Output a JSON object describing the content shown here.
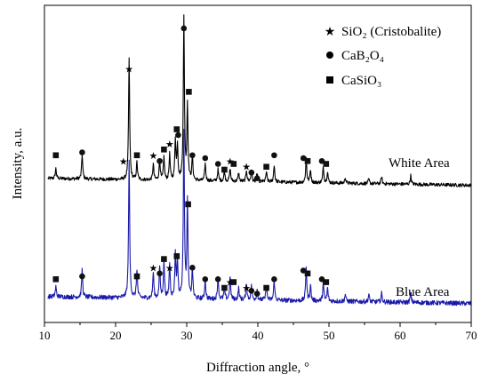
{
  "chart_data": {
    "type": "line",
    "xlabel": "Diffraction angle, °",
    "ylabel": "Intensity, a.u.",
    "xlim": [
      10,
      70
    ],
    "xticks": [
      10,
      20,
      30,
      40,
      50,
      60,
      70
    ],
    "grid": false,
    "legend": {
      "placement": "top-right",
      "entries": [
        {
          "marker": "star",
          "label": "SiO₂ (Cristobalite)"
        },
        {
          "marker": "circle",
          "label": "CaB₂O₄"
        },
        {
          "marker": "square",
          "label": "CaSiO₃"
        }
      ]
    },
    "series": [
      {
        "name": "White Area",
        "color": "#000000",
        "offset": 4,
        "baseline": 1.0,
        "slope": -0.004,
        "noise": 0.06,
        "peaks": [
          [
            11.6,
            0.35
          ],
          [
            15.3,
            0.85
          ],
          [
            21.9,
            4.2
          ],
          [
            23.0,
            0.6
          ],
          [
            25.3,
            0.55
          ],
          [
            26.2,
            0.7
          ],
          [
            26.8,
            0.8
          ],
          [
            27.6,
            0.9
          ],
          [
            28.4,
            1.4
          ],
          [
            28.7,
            1.2
          ],
          [
            29.6,
            5.6
          ],
          [
            30.1,
            2.6
          ],
          [
            30.8,
            0.8
          ],
          [
            32.6,
            0.6
          ],
          [
            34.4,
            0.4
          ],
          [
            35.3,
            0.35
          ],
          [
            36.1,
            0.45
          ],
          [
            37.3,
            0.3
          ],
          [
            38.4,
            0.4
          ],
          [
            39.1,
            0.35
          ],
          [
            39.9,
            0.3
          ],
          [
            41.2,
            0.35
          ],
          [
            42.3,
            0.6
          ],
          [
            46.8,
            0.85
          ],
          [
            47.4,
            0.45
          ],
          [
            49.2,
            0.55
          ],
          [
            49.8,
            0.4
          ],
          [
            52.3,
            0.2
          ],
          [
            55.6,
            0.15
          ],
          [
            57.4,
            0.25
          ],
          [
            61.5,
            0.3
          ]
        ],
        "markers": [
          {
            "x": 11.6,
            "y": 5.8,
            "type": "square"
          },
          {
            "x": 15.3,
            "y": 5.9,
            "type": "circle"
          },
          {
            "x": 21.9,
            "y": 8.8,
            "type": "star"
          },
          {
            "x": 23.0,
            "y": 5.8,
            "type": "square"
          },
          {
            "x": 25.3,
            "y": 5.8,
            "type": "star"
          },
          {
            "x": 26.2,
            "y": 5.6,
            "type": "circle"
          },
          {
            "x": 26.8,
            "y": 6.0,
            "type": "square"
          },
          {
            "x": 27.6,
            "y": 6.2,
            "type": "star"
          },
          {
            "x": 28.6,
            "y": 6.7,
            "type": "square"
          },
          {
            "x": 29.6,
            "y": 10.2,
            "type": "circle"
          },
          {
            "x": 30.3,
            "y": 8.0,
            "type": "square"
          },
          {
            "x": 30.8,
            "y": 5.8,
            "type": "circle"
          },
          {
            "x": 32.6,
            "y": 5.7,
            "type": "circle"
          },
          {
            "x": 34.4,
            "y": 5.5,
            "type": "circle"
          },
          {
            "x": 35.3,
            "y": 5.3,
            "type": "square"
          },
          {
            "x": 36.1,
            "y": 5.6,
            "type": "star"
          },
          {
            "x": 36.6,
            "y": 5.5,
            "type": "square"
          },
          {
            "x": 38.4,
            "y": 5.4,
            "type": "star"
          },
          {
            "x": 39.1,
            "y": 5.2,
            "type": "circle"
          },
          {
            "x": 39.9,
            "y": 5.0,
            "type": "circle"
          },
          {
            "x": 41.2,
            "y": 5.4,
            "type": "square"
          },
          {
            "x": 42.3,
            "y": 5.8,
            "type": "circle"
          },
          {
            "x": 46.4,
            "y": 5.7,
            "type": "circle"
          },
          {
            "x": 47.0,
            "y": 5.6,
            "type": "square"
          },
          {
            "x": 49.0,
            "y": 5.6,
            "type": "circle"
          },
          {
            "x": 49.6,
            "y": 5.5,
            "type": "square"
          }
        ]
      },
      {
        "name": "Blue Area",
        "color": "#1a1aaa",
        "offset": 0,
        "baseline": 0.9,
        "slope": -0.004,
        "noise": 0.08,
        "peaks": [
          [
            11.6,
            0.35
          ],
          [
            15.3,
            0.95
          ],
          [
            21.9,
            4.8
          ],
          [
            23.0,
            1.0
          ],
          [
            25.3,
            0.9
          ],
          [
            26.2,
            1.1
          ],
          [
            26.8,
            1.3
          ],
          [
            27.6,
            1.2
          ],
          [
            28.4,
            1.5
          ],
          [
            28.7,
            1.3
          ],
          [
            29.6,
            5.8
          ],
          [
            30.1,
            3.3
          ],
          [
            30.8,
            1.0
          ],
          [
            32.6,
            0.7
          ],
          [
            34.4,
            0.8
          ],
          [
            35.3,
            0.4
          ],
          [
            36.1,
            0.8
          ],
          [
            37.3,
            0.4
          ],
          [
            38.4,
            0.6
          ],
          [
            39.1,
            0.5
          ],
          [
            39.9,
            0.35
          ],
          [
            41.2,
            0.5
          ],
          [
            42.3,
            0.7
          ],
          [
            46.8,
            1.2
          ],
          [
            47.4,
            0.55
          ],
          [
            49.2,
            0.65
          ],
          [
            49.8,
            0.45
          ],
          [
            52.3,
            0.25
          ],
          [
            55.6,
            0.25
          ],
          [
            57.4,
            0.3
          ],
          [
            61.5,
            0.35
          ]
        ],
        "markers": [
          {
            "x": 11.6,
            "y": 1.5,
            "type": "square"
          },
          {
            "x": 15.3,
            "y": 1.6,
            "type": "circle"
          },
          {
            "x": 21.1,
            "y": 5.6,
            "type": "star"
          },
          {
            "x": 23.0,
            "y": 1.6,
            "type": "square"
          },
          {
            "x": 25.3,
            "y": 1.9,
            "type": "star"
          },
          {
            "x": 26.2,
            "y": 1.7,
            "type": "circle"
          },
          {
            "x": 26.8,
            "y": 2.2,
            "type": "square"
          },
          {
            "x": 27.6,
            "y": 1.9,
            "type": "star"
          },
          {
            "x": 28.6,
            "y": 2.3,
            "type": "square"
          },
          {
            "x": 28.8,
            "y": 6.5,
            "type": "circle"
          },
          {
            "x": 30.2,
            "y": 4.1,
            "type": "square"
          },
          {
            "x": 30.8,
            "y": 1.9,
            "type": "circle"
          },
          {
            "x": 32.6,
            "y": 1.5,
            "type": "circle"
          },
          {
            "x": 34.4,
            "y": 1.5,
            "type": "circle"
          },
          {
            "x": 35.3,
            "y": 1.2,
            "type": "square"
          },
          {
            "x": 36.1,
            "y": 1.4,
            "type": "star"
          },
          {
            "x": 36.6,
            "y": 1.4,
            "type": "square"
          },
          {
            "x": 38.4,
            "y": 1.2,
            "type": "star"
          },
          {
            "x": 39.1,
            "y": 1.1,
            "type": "circle"
          },
          {
            "x": 39.9,
            "y": 1.0,
            "type": "circle"
          },
          {
            "x": 41.2,
            "y": 1.2,
            "type": "square"
          },
          {
            "x": 42.3,
            "y": 1.5,
            "type": "circle"
          },
          {
            "x": 46.4,
            "y": 1.8,
            "type": "circle"
          },
          {
            "x": 47.0,
            "y": 1.7,
            "type": "square"
          },
          {
            "x": 49.0,
            "y": 1.5,
            "type": "circle"
          },
          {
            "x": 49.6,
            "y": 1.4,
            "type": "square"
          }
        ]
      }
    ]
  }
}
